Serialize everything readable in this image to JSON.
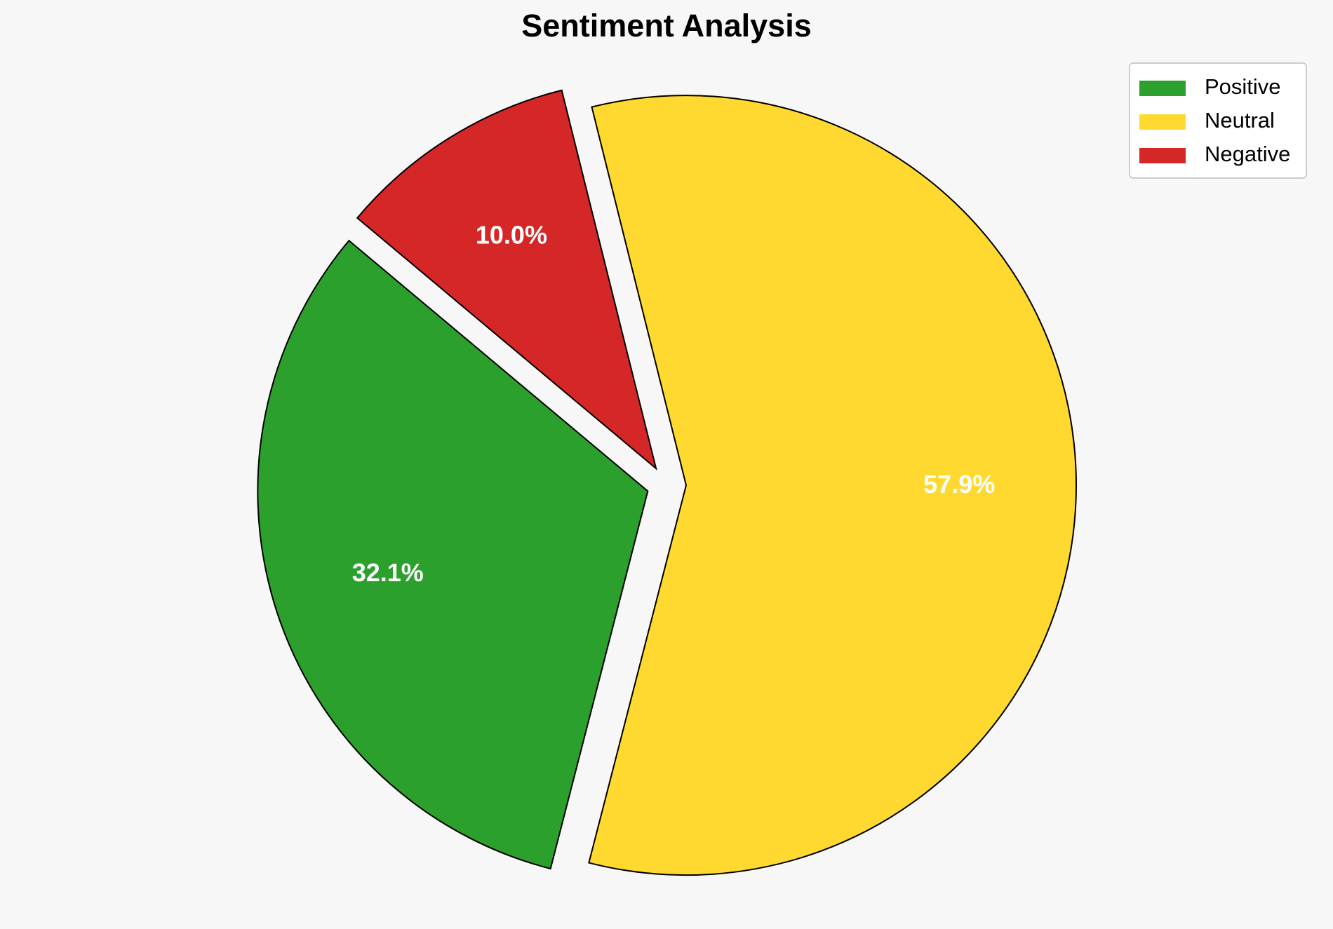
{
  "chart_data": {
    "type": "pie",
    "title": "Sentiment Analysis",
    "categories": [
      "Positive",
      "Neutral",
      "Negative"
    ],
    "values": [
      32.1,
      57.9,
      10.0
    ],
    "value_labels": [
      "32.1%",
      "57.9%",
      "10.0%"
    ],
    "colors": [
      "#2ca02c",
      "#ffd92f",
      "#d62728"
    ],
    "legend": "upper right"
  }
}
